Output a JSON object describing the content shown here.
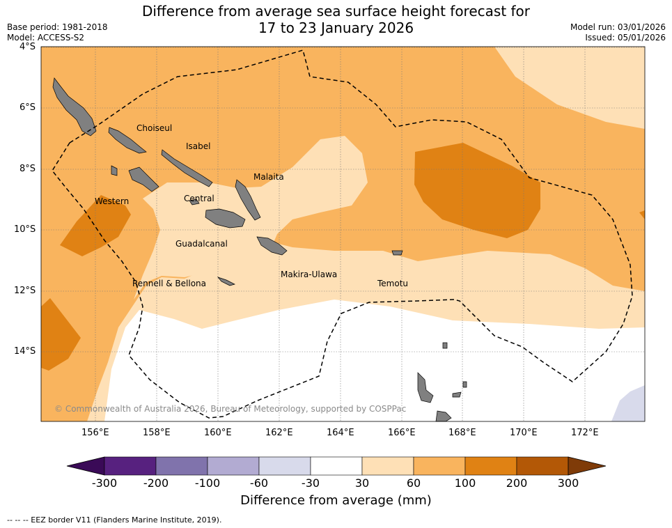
{
  "title": {
    "line1": "Difference from average sea surface height forecast for",
    "line2": "17 to 23 January 2026"
  },
  "meta": {
    "base_period": "Base period: 1981-2018",
    "model": "Model: ACCESS-S2",
    "model_run": "Model run: 03/01/2026",
    "issued": "Issued: 05/01/2026"
  },
  "axes": {
    "lat_labels": [
      "4°S",
      "6°S",
      "8°S",
      "10°S",
      "12°S",
      "14°S"
    ],
    "lon_labels": [
      "156°E",
      "158°E",
      "160°E",
      "162°E",
      "164°E",
      "166°E",
      "168°E",
      "170°E",
      "172°E"
    ]
  },
  "places": [
    {
      "name": "Choiseul"
    },
    {
      "name": "Isabel"
    },
    {
      "name": "Malaita"
    },
    {
      "name": "Western"
    },
    {
      "name": "Central"
    },
    {
      "name": "Guadalcanal"
    },
    {
      "name": "Makira-Ulawa"
    },
    {
      "name": "Rennell & Bellona"
    },
    {
      "name": "Temotu"
    }
  ],
  "copyright": "© Commonwealth of Australia 2026, Bureau of Meteorology, supported by COSPPac",
  "colorbar": {
    "title": "Difference from average (mm)",
    "labels": [
      "-300",
      "-200",
      "-100",
      "-60",
      "-30",
      "30",
      "60",
      "100",
      "200",
      "300"
    ],
    "colors": [
      "#3a0a57",
      "#57217f",
      "#8073ac",
      "#b2abd2",
      "#d8daeb",
      "#ffffff",
      "#fee0b6",
      "#f9b45e",
      "#e08214",
      "#b35806",
      "#7f3b08"
    ]
  },
  "legend_note": "--  --  -- EEZ border V11 (Flanders Marine Institute, 2019)."
}
